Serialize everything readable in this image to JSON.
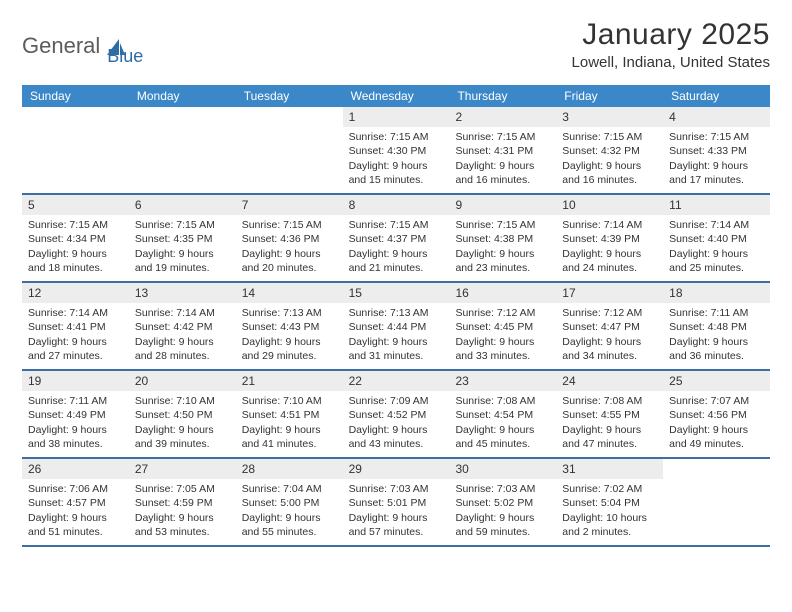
{
  "logo": {
    "text1": "General",
    "text2": "Blue"
  },
  "title": "January 2025",
  "location": "Lowell, Indiana, United States",
  "colors": {
    "header_bg": "#3b87c8",
    "header_text": "#ffffff",
    "divider": "#3b6fa0",
    "daynum_bg": "#ededed",
    "text": "#333333",
    "logo_gray": "#5c5c5c",
    "logo_blue": "#2d6da6",
    "page_bg": "#ffffff"
  },
  "day_names": [
    "Sunday",
    "Monday",
    "Tuesday",
    "Wednesday",
    "Thursday",
    "Friday",
    "Saturday"
  ],
  "weeks": [
    [
      null,
      null,
      null,
      {
        "n": "1",
        "sunrise": "7:15 AM",
        "sunset": "4:30 PM",
        "daylight": "9 hours and 15 minutes."
      },
      {
        "n": "2",
        "sunrise": "7:15 AM",
        "sunset": "4:31 PM",
        "daylight": "9 hours and 16 minutes."
      },
      {
        "n": "3",
        "sunrise": "7:15 AM",
        "sunset": "4:32 PM",
        "daylight": "9 hours and 16 minutes."
      },
      {
        "n": "4",
        "sunrise": "7:15 AM",
        "sunset": "4:33 PM",
        "daylight": "9 hours and 17 minutes."
      }
    ],
    [
      {
        "n": "5",
        "sunrise": "7:15 AM",
        "sunset": "4:34 PM",
        "daylight": "9 hours and 18 minutes."
      },
      {
        "n": "6",
        "sunrise": "7:15 AM",
        "sunset": "4:35 PM",
        "daylight": "9 hours and 19 minutes."
      },
      {
        "n": "7",
        "sunrise": "7:15 AM",
        "sunset": "4:36 PM",
        "daylight": "9 hours and 20 minutes."
      },
      {
        "n": "8",
        "sunrise": "7:15 AM",
        "sunset": "4:37 PM",
        "daylight": "9 hours and 21 minutes."
      },
      {
        "n": "9",
        "sunrise": "7:15 AM",
        "sunset": "4:38 PM",
        "daylight": "9 hours and 23 minutes."
      },
      {
        "n": "10",
        "sunrise": "7:14 AM",
        "sunset": "4:39 PM",
        "daylight": "9 hours and 24 minutes."
      },
      {
        "n": "11",
        "sunrise": "7:14 AM",
        "sunset": "4:40 PM",
        "daylight": "9 hours and 25 minutes."
      }
    ],
    [
      {
        "n": "12",
        "sunrise": "7:14 AM",
        "sunset": "4:41 PM",
        "daylight": "9 hours and 27 minutes."
      },
      {
        "n": "13",
        "sunrise": "7:14 AM",
        "sunset": "4:42 PM",
        "daylight": "9 hours and 28 minutes."
      },
      {
        "n": "14",
        "sunrise": "7:13 AM",
        "sunset": "4:43 PM",
        "daylight": "9 hours and 29 minutes."
      },
      {
        "n": "15",
        "sunrise": "7:13 AM",
        "sunset": "4:44 PM",
        "daylight": "9 hours and 31 minutes."
      },
      {
        "n": "16",
        "sunrise": "7:12 AM",
        "sunset": "4:45 PM",
        "daylight": "9 hours and 33 minutes."
      },
      {
        "n": "17",
        "sunrise": "7:12 AM",
        "sunset": "4:47 PM",
        "daylight": "9 hours and 34 minutes."
      },
      {
        "n": "18",
        "sunrise": "7:11 AM",
        "sunset": "4:48 PM",
        "daylight": "9 hours and 36 minutes."
      }
    ],
    [
      {
        "n": "19",
        "sunrise": "7:11 AM",
        "sunset": "4:49 PM",
        "daylight": "9 hours and 38 minutes."
      },
      {
        "n": "20",
        "sunrise": "7:10 AM",
        "sunset": "4:50 PM",
        "daylight": "9 hours and 39 minutes."
      },
      {
        "n": "21",
        "sunrise": "7:10 AM",
        "sunset": "4:51 PM",
        "daylight": "9 hours and 41 minutes."
      },
      {
        "n": "22",
        "sunrise": "7:09 AM",
        "sunset": "4:52 PM",
        "daylight": "9 hours and 43 minutes."
      },
      {
        "n": "23",
        "sunrise": "7:08 AM",
        "sunset": "4:54 PM",
        "daylight": "9 hours and 45 minutes."
      },
      {
        "n": "24",
        "sunrise": "7:08 AM",
        "sunset": "4:55 PM",
        "daylight": "9 hours and 47 minutes."
      },
      {
        "n": "25",
        "sunrise": "7:07 AM",
        "sunset": "4:56 PM",
        "daylight": "9 hours and 49 minutes."
      }
    ],
    [
      {
        "n": "26",
        "sunrise": "7:06 AM",
        "sunset": "4:57 PM",
        "daylight": "9 hours and 51 minutes."
      },
      {
        "n": "27",
        "sunrise": "7:05 AM",
        "sunset": "4:59 PM",
        "daylight": "9 hours and 53 minutes."
      },
      {
        "n": "28",
        "sunrise": "7:04 AM",
        "sunset": "5:00 PM",
        "daylight": "9 hours and 55 minutes."
      },
      {
        "n": "29",
        "sunrise": "7:03 AM",
        "sunset": "5:01 PM",
        "daylight": "9 hours and 57 minutes."
      },
      {
        "n": "30",
        "sunrise": "7:03 AM",
        "sunset": "5:02 PM",
        "daylight": "9 hours and 59 minutes."
      },
      {
        "n": "31",
        "sunrise": "7:02 AM",
        "sunset": "5:04 PM",
        "daylight": "10 hours and 2 minutes."
      },
      null
    ]
  ],
  "labels": {
    "sunrise": "Sunrise: ",
    "sunset": "Sunset: ",
    "daylight": "Daylight: "
  }
}
